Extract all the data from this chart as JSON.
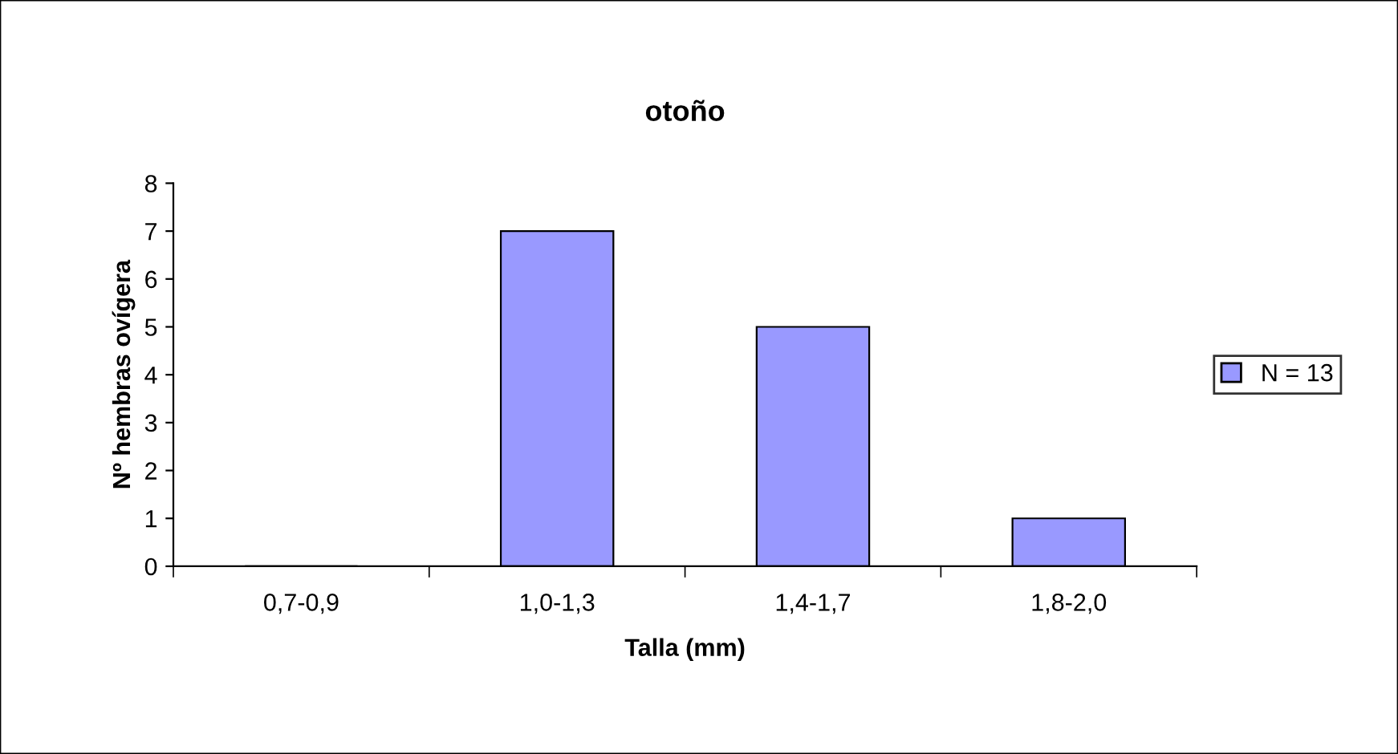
{
  "chart_data": {
    "type": "bar",
    "title": "otoño",
    "xlabel": "Talla (mm)",
    "ylabel": "Nº hembras ovígera",
    "categories": [
      "0,7-0,9",
      "1,0-1,3",
      "1,4-1,7",
      "1,8-2,0"
    ],
    "series": [
      {
        "name": "N = 13",
        "color": "#9999ff",
        "values": [
          0,
          7,
          5,
          1
        ]
      }
    ],
    "ylim": [
      0,
      8
    ],
    "yticks": [
      0,
      1,
      2,
      3,
      4,
      5,
      6,
      7,
      8
    ],
    "grid": false,
    "legend": "right"
  }
}
